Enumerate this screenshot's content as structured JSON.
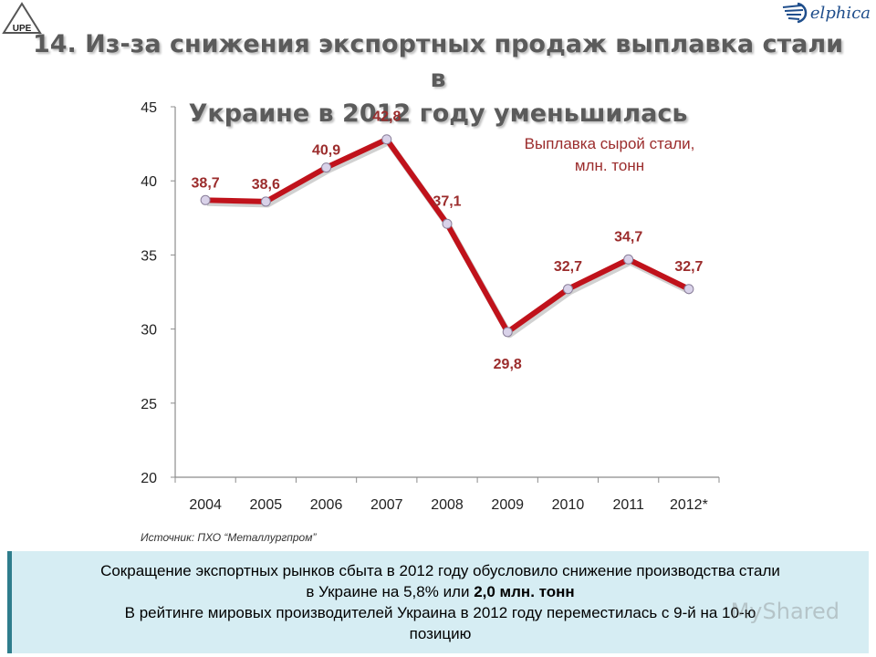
{
  "header": {
    "title_line1": "14. Из-за снижения экспортных продаж выплавка стали в",
    "title_line2": "Украине в 2012 году уменьшилась",
    "logo_left_text": "UPE",
    "logo_right_text": "elphica"
  },
  "chart_data": {
    "type": "line",
    "categories": [
      "2004",
      "2005",
      "2006",
      "2007",
      "2008",
      "2009",
      "2010",
      "2011",
      "2012*"
    ],
    "series": [
      {
        "name": "",
        "values": [
          38.7,
          38.6,
          40.9,
          42.8,
          37.1,
          29.8,
          32.7,
          34.7,
          32.7
        ]
      }
    ],
    "data_labels": [
      "38,7",
      "38,6",
      "40,9",
      "42,8",
      "37,1",
      "29,8",
      "32,7",
      "34,7",
      "32,7"
    ],
    "y_ticks": [
      "20",
      "25",
      "30",
      "35",
      "40",
      "45"
    ],
    "ylim": [
      20,
      45
    ],
    "grid": false,
    "annotation_line1": "Выплавка сырой стали,",
    "annotation_line2": "млн. тонн",
    "line_color": "#c0121b",
    "label_color": "#9b2c2c",
    "marker_color": "#d9d2e9"
  },
  "source": "Источник: ПХО “Металлургпром”",
  "note": {
    "line1": "Сокращение экспортных рынков сбыта в 2012 году обусловило снижение производства стали",
    "line2_text": "в Украине на 5,8% или ",
    "line2_bold": "2,0 млн. тонн",
    "line3": "В рейтинге мировых производителей Украина в 2012 году переместилась с 9-й на 10-ю",
    "line4": "позицию"
  },
  "watermark": "MyShared"
}
